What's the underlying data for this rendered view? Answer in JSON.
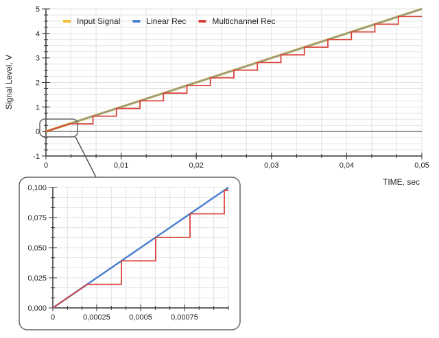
{
  "chart_data": [
    {
      "type": "line",
      "ylabel": "Signal Level, V",
      "xlabel": "TIME, sec",
      "xlim": [
        0,
        0.05
      ],
      "ylim": [
        -1,
        5
      ],
      "x_ticks": [
        "0",
        "0,01",
        "0,02",
        "0,03",
        "0,04",
        "0,05"
      ],
      "x_tick_values": [
        0,
        0.01,
        0.02,
        0.03,
        0.04,
        0.05
      ],
      "y_ticks": [
        "-1",
        "0",
        "1",
        "2",
        "3",
        "4",
        "5"
      ],
      "y_tick_values": [
        -1,
        0,
        1,
        2,
        3,
        4,
        5
      ],
      "grid": true,
      "legend_position": "top",
      "series": [
        {
          "name": "Input Signal",
          "color": "#f0c030",
          "kind": "ramp",
          "slope": 100,
          "x": [
            0,
            0.05
          ],
          "y": [
            0,
            5
          ]
        },
        {
          "name": "Linear Rec",
          "color": "#4a80d0",
          "kind": "ramp",
          "slope": 100,
          "x": [
            0,
            0.05
          ],
          "y": [
            0,
            5
          ]
        },
        {
          "name": "Multichannel Rec",
          "color": "#d9443a",
          "kind": "staircase",
          "step_period": 0.003125,
          "step_height": 0.3125,
          "x_end": 0.05
        }
      ]
    },
    {
      "type": "line",
      "title": "",
      "xlim": [
        0,
        0.001
      ],
      "ylim": [
        0,
        0.1
      ],
      "x_ticks": [
        "0",
        "0,00025",
        "0,0005",
        "0,00075"
      ],
      "x_tick_values": [
        0,
        0.00025,
        0.0005,
        0.00075
      ],
      "y_ticks": [
        "0,000",
        "0,025",
        "0,050",
        "0,075",
        "0,100"
      ],
      "y_tick_values": [
        0,
        0.025,
        0.05,
        0.075,
        0.1
      ],
      "grid": true,
      "series": [
        {
          "name": "Linear Rec",
          "color": "#4a80d0",
          "kind": "ramp",
          "x": [
            0,
            0.001
          ],
          "y": [
            0,
            0.1
          ]
        },
        {
          "name": "Multichannel Rec",
          "color": "#d9443a",
          "kind": "staircase",
          "step_period": 0.0001953,
          "step_height": 0.01953,
          "x_end": 0.001
        }
      ]
    }
  ]
}
